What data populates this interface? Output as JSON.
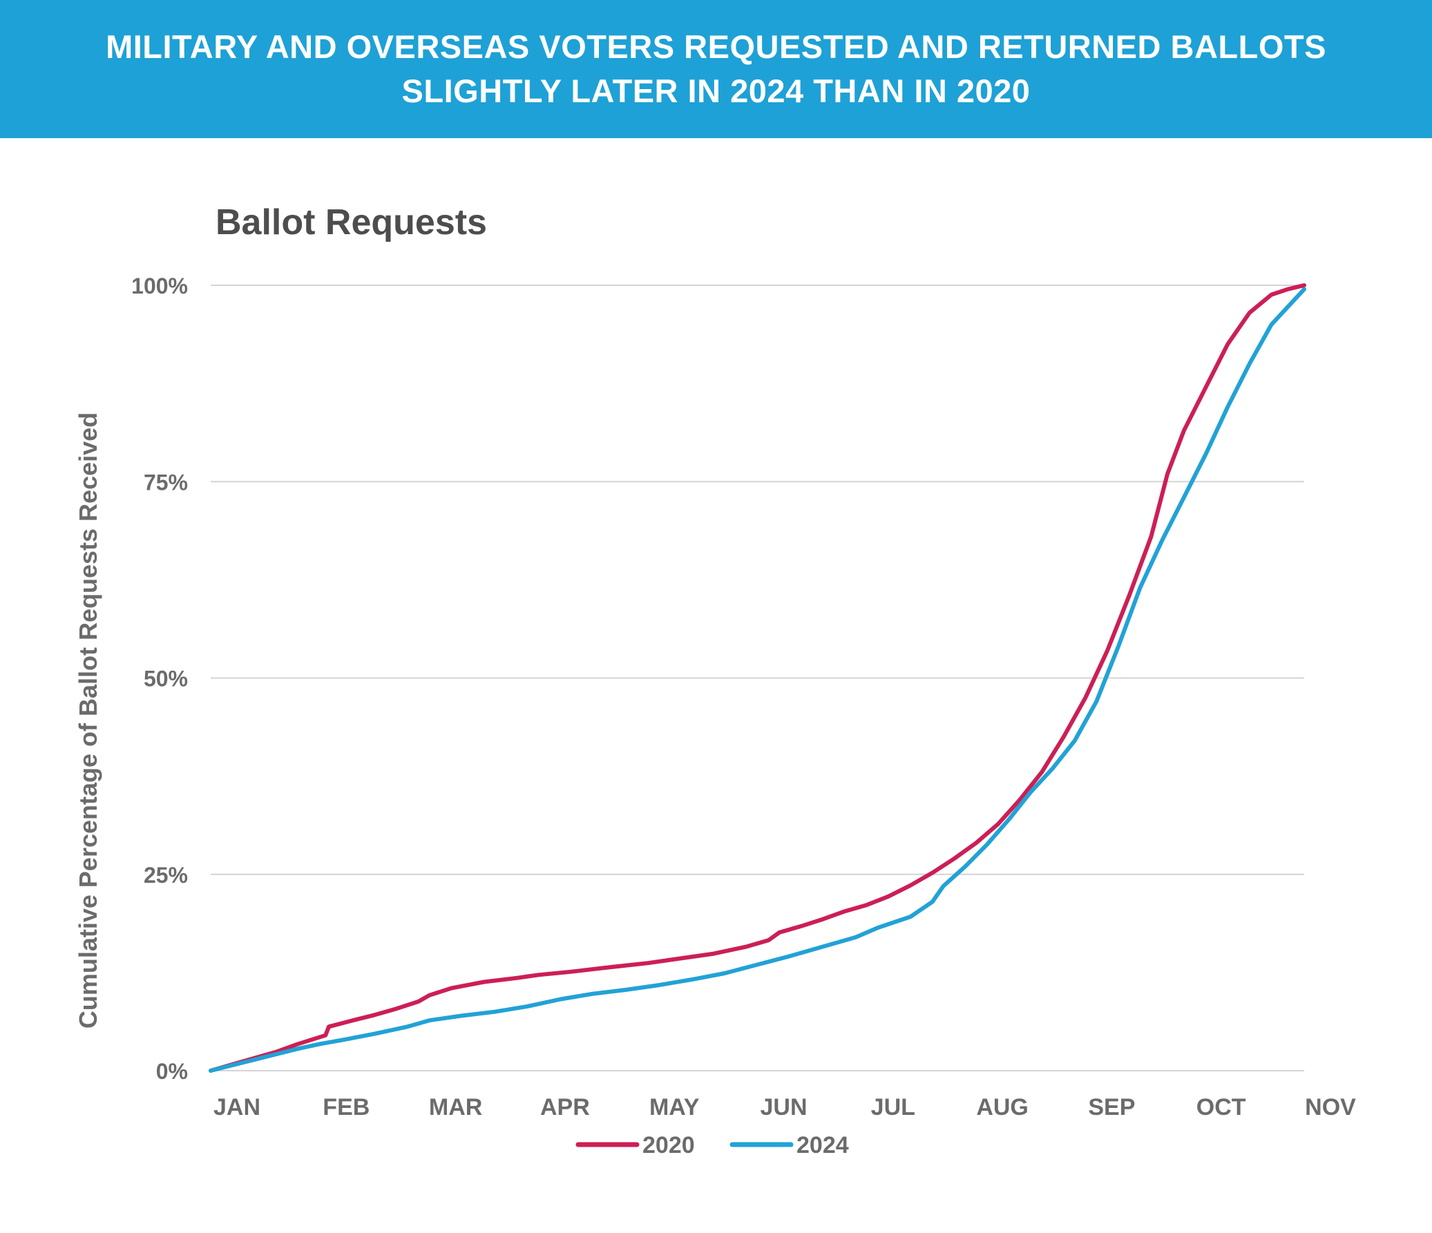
{
  "header": {
    "title_line1": "MILITARY AND OVERSEAS VOTERS REQUESTED AND RETURNED BALLOTS",
    "title_line2": "SLIGHTLY LATER IN 2024 THAN IN 2020"
  },
  "colors": {
    "banner": "#1ea1d6",
    "series_2020": "#cc1f55",
    "series_2024": "#22a2d6",
    "grid": "#d4d4d4",
    "tick_text": "#6b6b6b"
  },
  "chart_data": {
    "type": "line",
    "title": "Ballot Requests",
    "xlabel": "",
    "ylabel": "Cumulative Percentage of Ballot Requests Received",
    "xlim": [
      0,
      10
    ],
    "ylim": [
      0,
      100
    ],
    "categories": [
      "JAN",
      "FEB",
      "MAR",
      "APR",
      "MAY",
      "JUN",
      "JUL",
      "AUG",
      "SEP",
      "OCT",
      "NOV"
    ],
    "yticks": [
      {
        "value": 0,
        "label": "0%"
      },
      {
        "value": 25,
        "label": "25%"
      },
      {
        "value": 50,
        "label": "50%"
      },
      {
        "value": 75,
        "label": "75%"
      },
      {
        "value": 100,
        "label": "100%"
      }
    ],
    "grid": true,
    "legend_position": "bottom-center",
    "series": [
      {
        "name": "2020",
        "color": "#cc1f55",
        "points": [
          [
            0,
            0
          ],
          [
            0.2,
            0.8
          ],
          [
            0.4,
            1.6
          ],
          [
            0.6,
            2.4
          ],
          [
            0.8,
            3.4
          ],
          [
            1.05,
            4.5
          ],
          [
            1.08,
            5.6
          ],
          [
            1.3,
            6.4
          ],
          [
            1.5,
            7.1
          ],
          [
            1.7,
            7.9
          ],
          [
            1.9,
            8.8
          ],
          [
            2.0,
            9.6
          ],
          [
            2.2,
            10.5
          ],
          [
            2.5,
            11.3
          ],
          [
            2.8,
            11.8
          ],
          [
            3.0,
            12.2
          ],
          [
            3.3,
            12.6
          ],
          [
            3.6,
            13.1
          ],
          [
            4.0,
            13.7
          ],
          [
            4.3,
            14.3
          ],
          [
            4.6,
            14.9
          ],
          [
            4.9,
            15.8
          ],
          [
            5.1,
            16.6
          ],
          [
            5.2,
            17.6
          ],
          [
            5.4,
            18.4
          ],
          [
            5.6,
            19.3
          ],
          [
            5.8,
            20.3
          ],
          [
            6.0,
            21.1
          ],
          [
            6.2,
            22.2
          ],
          [
            6.4,
            23.6
          ],
          [
            6.6,
            25.2
          ],
          [
            6.8,
            27.0
          ],
          [
            7.0,
            29.0
          ],
          [
            7.2,
            31.4
          ],
          [
            7.4,
            34.5
          ],
          [
            7.6,
            38.0
          ],
          [
            7.8,
            42.5
          ],
          [
            8.0,
            47.5
          ],
          [
            8.2,
            53.5
          ],
          [
            8.4,
            60.5
          ],
          [
            8.6,
            68.0
          ],
          [
            8.75,
            76.0
          ],
          [
            8.9,
            81.5
          ],
          [
            9.1,
            87.0
          ],
          [
            9.3,
            92.5
          ],
          [
            9.5,
            96.5
          ],
          [
            9.7,
            98.8
          ],
          [
            9.85,
            99.5
          ],
          [
            10,
            100
          ]
        ]
      },
      {
        "name": "2024",
        "color": "#22a2d6",
        "points": [
          [
            0,
            0
          ],
          [
            0.2,
            0.7
          ],
          [
            0.4,
            1.4
          ],
          [
            0.6,
            2.1
          ],
          [
            0.8,
            2.8
          ],
          [
            1.0,
            3.4
          ],
          [
            1.2,
            3.9
          ],
          [
            1.5,
            4.7
          ],
          [
            1.8,
            5.6
          ],
          [
            2.0,
            6.4
          ],
          [
            2.3,
            7.0
          ],
          [
            2.6,
            7.5
          ],
          [
            2.9,
            8.2
          ],
          [
            3.2,
            9.1
          ],
          [
            3.5,
            9.8
          ],
          [
            3.8,
            10.3
          ],
          [
            4.1,
            10.9
          ],
          [
            4.4,
            11.6
          ],
          [
            4.7,
            12.4
          ],
          [
            5.0,
            13.5
          ],
          [
            5.3,
            14.6
          ],
          [
            5.6,
            15.8
          ],
          [
            5.9,
            17.0
          ],
          [
            6.1,
            18.2
          ],
          [
            6.4,
            19.6
          ],
          [
            6.6,
            21.5
          ],
          [
            6.7,
            23.5
          ],
          [
            6.9,
            26.0
          ],
          [
            7.1,
            28.8
          ],
          [
            7.3,
            32.0
          ],
          [
            7.5,
            35.5
          ],
          [
            7.7,
            38.5
          ],
          [
            7.9,
            42.0
          ],
          [
            8.1,
            47.0
          ],
          [
            8.3,
            54.0
          ],
          [
            8.5,
            61.5
          ],
          [
            8.7,
            67.5
          ],
          [
            8.9,
            73.0
          ],
          [
            9.1,
            78.5
          ],
          [
            9.3,
            84.5
          ],
          [
            9.5,
            90.0
          ],
          [
            9.7,
            95.0
          ],
          [
            9.9,
            98.0
          ],
          [
            10,
            99.5
          ]
        ]
      }
    ]
  }
}
